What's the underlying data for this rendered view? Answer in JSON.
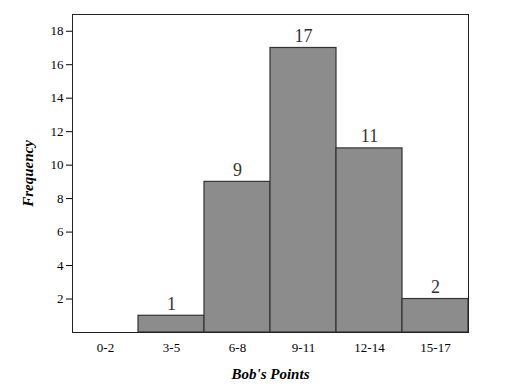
{
  "chart_data": {
    "type": "bar",
    "x_label": "Bob's Points",
    "y_label": "Frequency",
    "categories": [
      "0-2",
      "3-5",
      "6-8",
      "9-11",
      "12-14",
      "15-17"
    ],
    "values": [
      0,
      1,
      9,
      17,
      11,
      2
    ],
    "value_labels": [
      null,
      "1",
      "9",
      "17",
      "11",
      "2"
    ],
    "color": "#8c8c8c",
    "ylim": [
      0,
      19
    ],
    "yticks": [
      2,
      4,
      6,
      8,
      10,
      12,
      14,
      16,
      18
    ],
    "data_labels": true,
    "grid": false
  }
}
